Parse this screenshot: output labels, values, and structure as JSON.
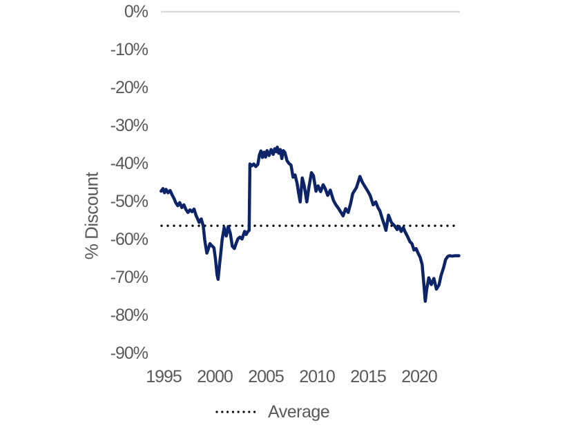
{
  "chart_data": {
    "type": "line",
    "title": "",
    "xlabel": "",
    "ylabel": "% Discount",
    "grid": false,
    "legend_position": "bottom-center",
    "legend": [
      "Average"
    ],
    "x_tick_labels": [
      "1995",
      "2000",
      "2005",
      "2010",
      "2015",
      "2020"
    ],
    "x_ticks": [
      1995,
      2000,
      2005,
      2010,
      2015,
      2020
    ],
    "y_tick_labels": [
      "0%",
      "-10%",
      "-20%",
      "-30%",
      "-40%",
      "-50%",
      "-60%",
      "-70%",
      "-80%",
      "-90%"
    ],
    "y_ticks": [
      0,
      -10,
      -20,
      -30,
      -40,
      -50,
      -60,
      -70,
      -80,
      -90
    ],
    "xlim": [
      1994.7,
      2024.0
    ],
    "ylim": [
      0,
      -90
    ],
    "average_value": -56.4,
    "colors": {
      "series": "#0d2468",
      "average": "#000000",
      "axis_line": "#d9d9d9",
      "text": "#595959"
    },
    "series": [
      {
        "name": "% Discount",
        "color": "#0d2468",
        "x": [
          1994.72,
          1994.9,
          1995.05,
          1995.2,
          1995.4,
          1995.6,
          1995.8,
          1996.0,
          1996.15,
          1996.35,
          1996.55,
          1996.75,
          1996.95,
          1997.15,
          1997.35,
          1997.55,
          1997.75,
          1997.95,
          1998.15,
          1998.3,
          1998.45,
          1998.65,
          1998.85,
          1999.0,
          1999.2,
          1999.35,
          1999.5,
          1999.7,
          1999.9,
          2000.05,
          2000.2,
          2000.3,
          2000.45,
          2000.55,
          2000.7,
          2000.9,
          2001.1,
          2001.3,
          2001.5,
          2001.7,
          2001.9,
          2002.1,
          2002.25,
          2002.45,
          2002.65,
          2002.9,
          2003.05,
          2003.2,
          2003.35,
          2003.42,
          2003.6,
          2003.8,
          2004.0,
          2004.2,
          2004.35,
          2004.5,
          2004.65,
          2004.8,
          2004.95,
          2005.1,
          2005.3,
          2005.5,
          2005.7,
          2005.85,
          2006.0,
          2006.1,
          2006.25,
          2006.4,
          2006.55,
          2006.7,
          2006.85,
          2007.05,
          2007.25,
          2007.45,
          2007.65,
          2007.85,
          2008.05,
          2008.2,
          2008.35,
          2008.55,
          2008.75,
          2009.0,
          2009.2,
          2009.45,
          2009.65,
          2009.9,
          2010.1,
          2010.35,
          2010.6,
          2010.8,
          2011.05,
          2011.3,
          2011.6,
          2011.85,
          2012.1,
          2012.35,
          2012.55,
          2012.8,
          2013.05,
          2013.3,
          2013.5,
          2013.85,
          2014.05,
          2014.2,
          2014.45,
          2014.7,
          2014.95,
          2015.2,
          2015.5,
          2015.75,
          2016.0,
          2016.15,
          2016.4,
          2016.6,
          2016.75,
          2017.0,
          2017.3,
          2017.6,
          2017.85,
          2018.05,
          2018.25,
          2018.45,
          2018.65,
          2018.9,
          2019.1,
          2019.3,
          2019.5,
          2019.7,
          2019.9,
          2020.1,
          2020.3,
          2020.45,
          2020.6,
          2020.75,
          2020.95,
          2021.2,
          2021.45,
          2021.7,
          2021.95,
          2022.15,
          2022.4,
          2022.6,
          2022.8,
          2023.0,
          2023.25,
          2023.5,
          2023.7,
          2023.9
        ],
        "y": [
          -47.3,
          -46.6,
          -47.7,
          -46.8,
          -47.7,
          -47.1,
          -48.3,
          -49.3,
          -50.3,
          -51.1,
          -50.3,
          -51.6,
          -50.9,
          -52.1,
          -52.9,
          -52.2,
          -52.7,
          -52.0,
          -53.7,
          -54.6,
          -55.5,
          -54.6,
          -56.4,
          -60.2,
          -63.6,
          -62.5,
          -61.1,
          -61.7,
          -62.2,
          -65.3,
          -69.3,
          -70.5,
          -66.5,
          -64.0,
          -60.0,
          -56.9,
          -59.1,
          -56.6,
          -58.4,
          -61.8,
          -62.4,
          -60.8,
          -59.8,
          -59.4,
          -59.9,
          -57.9,
          -58.7,
          -58.0,
          -57.6,
          -40.1,
          -40.6,
          -40.1,
          -40.8,
          -40.2,
          -37.8,
          -36.7,
          -38.4,
          -37.0,
          -38.3,
          -36.6,
          -37.9,
          -36.3,
          -37.6,
          -36.1,
          -36.9,
          -35.7,
          -37.3,
          -36.3,
          -38.7,
          -36.6,
          -37.1,
          -39.2,
          -40.0,
          -40.4,
          -43.6,
          -43.0,
          -45.3,
          -47.9,
          -50.1,
          -43.8,
          -45.9,
          -50.1,
          -46.3,
          -42.4,
          -43.2,
          -47.3,
          -45.9,
          -47.4,
          -45.6,
          -46.6,
          -48.4,
          -47.0,
          -49.7,
          -50.9,
          -51.8,
          -52.9,
          -53.8,
          -51.9,
          -52.9,
          -50.4,
          -47.9,
          -46.4,
          -44.7,
          -43.4,
          -45.0,
          -46.1,
          -47.2,
          -48.4,
          -50.9,
          -50.1,
          -51.8,
          -52.4,
          -54.6,
          -56.2,
          -57.6,
          -53.6,
          -55.6,
          -56.4,
          -57.4,
          -56.6,
          -57.9,
          -56.9,
          -58.1,
          -59.4,
          -60.6,
          -61.1,
          -62.8,
          -62.4,
          -63.6,
          -64.7,
          -66.6,
          -71.2,
          -76.3,
          -73.0,
          -70.1,
          -71.9,
          -70.3,
          -73.1,
          -72.0,
          -69.5,
          -67.4,
          -65.3,
          -64.5,
          -64.3,
          -64.4,
          -64.3,
          -64.3,
          -64.3
        ]
      }
    ]
  }
}
